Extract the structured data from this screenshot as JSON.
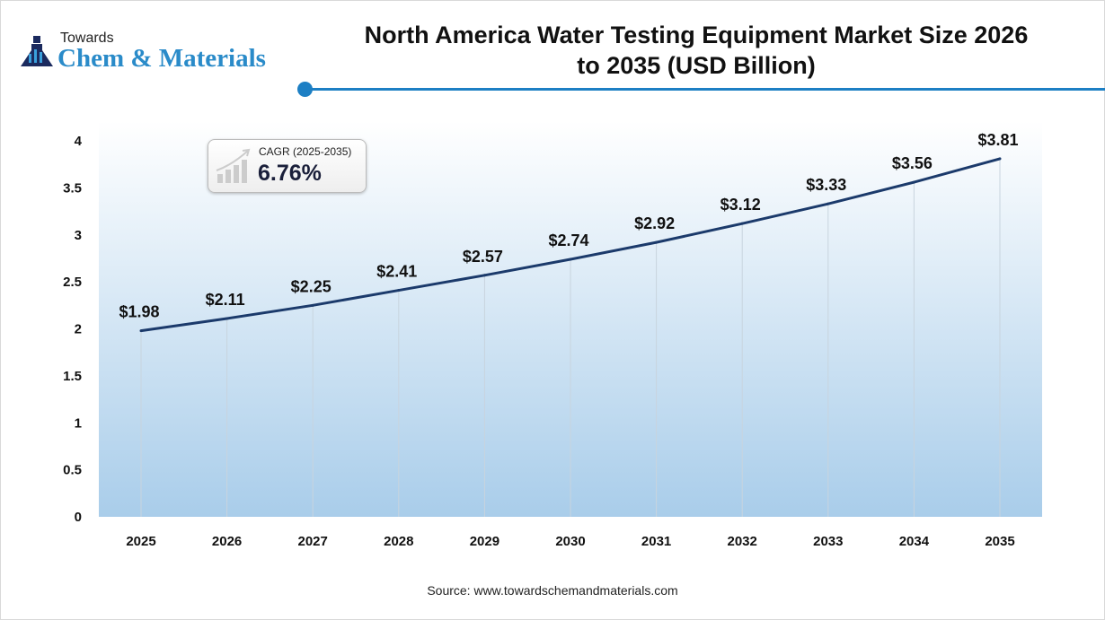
{
  "logo": {
    "line1": "Towards",
    "line2": "Chem & Materials"
  },
  "title": "North America Water Testing Equipment Market Size 2026 to 2035 (USD Billion)",
  "cagr": {
    "label": "CAGR (2025-2035)",
    "value": "6.76%"
  },
  "source": "Source: www.towardschemandmaterials.com",
  "colors": {
    "line": "#1b3a6b",
    "accent": "#1d7fc4",
    "fill_bottom": "#a9cdea"
  },
  "chart_data": {
    "type": "area",
    "title": "North America Water Testing Equipment Market Size 2026 to 2035 (USD Billion)",
    "categories": [
      "2025",
      "2026",
      "2027",
      "2028",
      "2029",
      "2030",
      "2031",
      "2032",
      "2033",
      "2034",
      "2035"
    ],
    "values": [
      1.98,
      2.11,
      2.25,
      2.41,
      2.57,
      2.74,
      2.92,
      3.12,
      3.33,
      3.56,
      3.81
    ],
    "data_labels": [
      "$1.98",
      "$2.11",
      "$2.25",
      "$2.41",
      "$2.57",
      "$2.74",
      "$2.92",
      "$3.12",
      "$3.33",
      "$3.56",
      "$3.81"
    ],
    "yticks": [
      "0",
      "0.5",
      "1",
      "1.5",
      "2",
      "2.5",
      "3",
      "3.5",
      "4"
    ],
    "ylim": [
      0,
      4
    ],
    "xlabel": "",
    "ylabel": "",
    "grid": "vertical lines at categories"
  }
}
